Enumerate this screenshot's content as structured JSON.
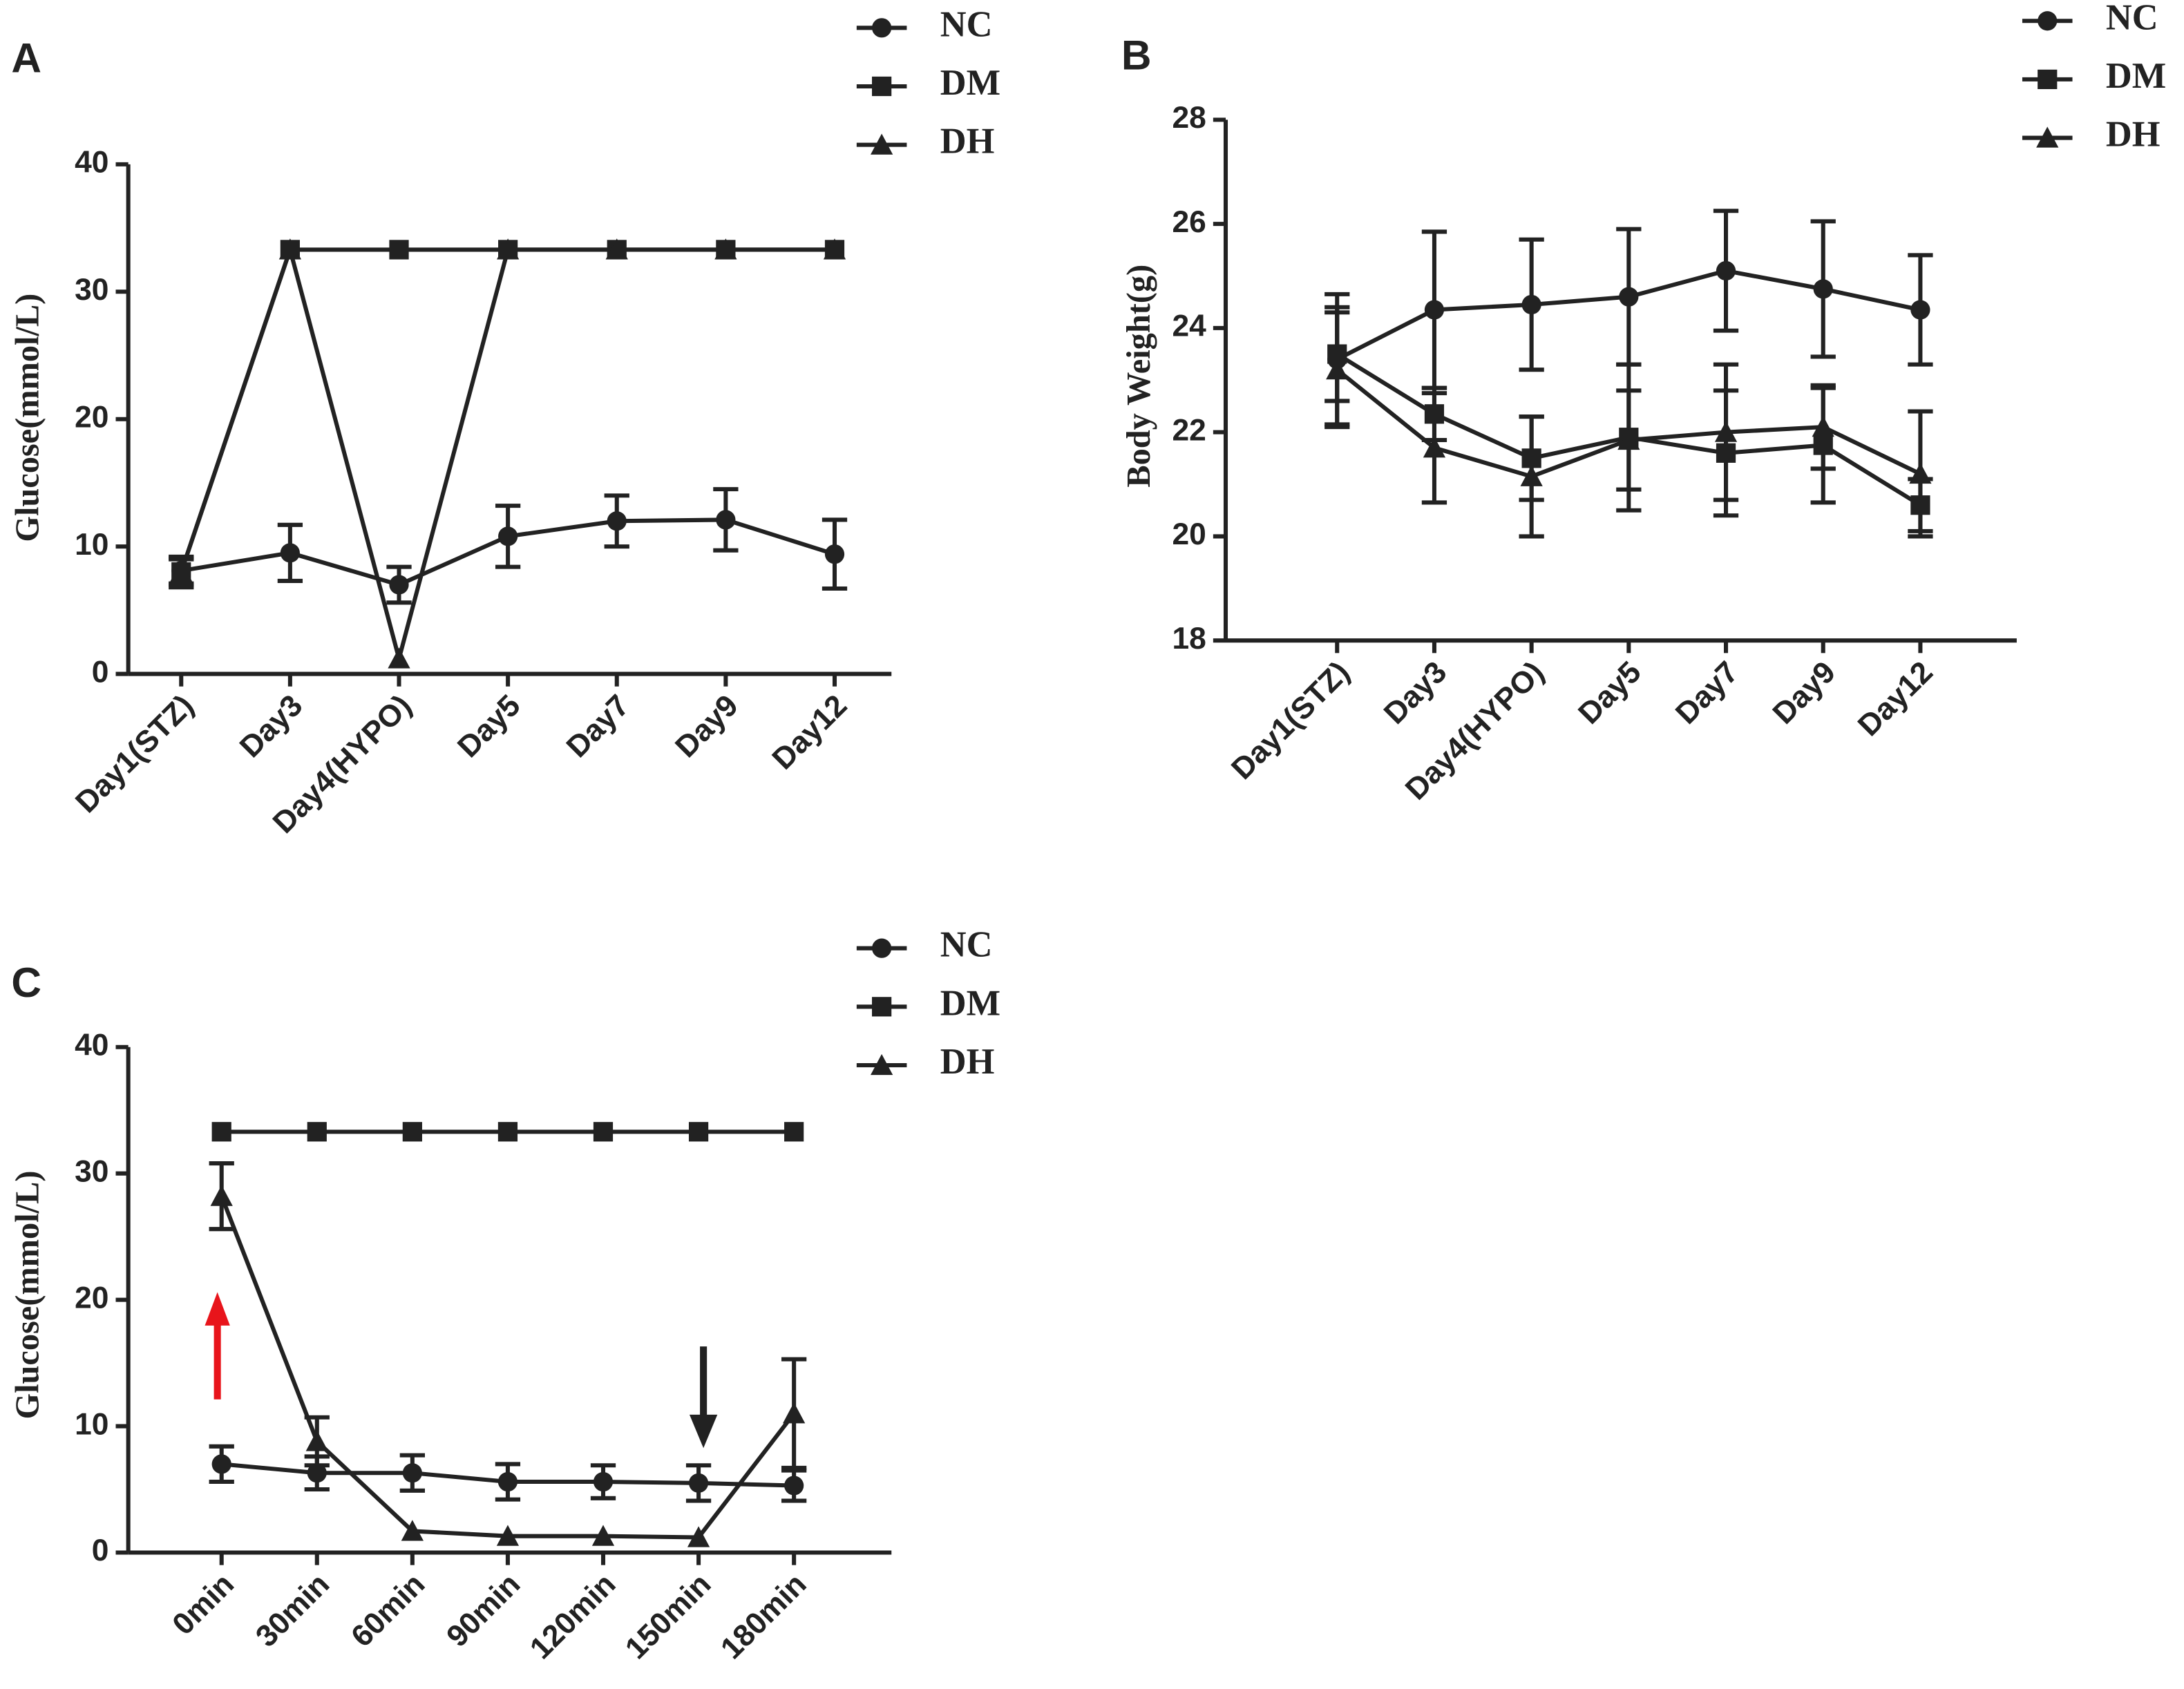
{
  "chart_data": [
    {
      "type": "line",
      "panel": "A",
      "ylabel": "Glucose(mmol/L)",
      "categories": [
        "Day1(STZ)",
        "Day3",
        "Day4(HYPO)",
        "Day5",
        "Day7",
        "Day9",
        "Day12"
      ],
      "ylim": [
        0,
        40
      ],
      "yticks": [
        0,
        10,
        20,
        30,
        40
      ],
      "series": [
        {
          "name": "NC",
          "marker": "circle",
          "color": "#222",
          "values": [
            8.1,
            9.5,
            7.0,
            10.8,
            12.0,
            12.1,
            9.4
          ],
          "errors": [
            1.0,
            2.2,
            1.4,
            2.4,
            2.0,
            2.4,
            2.7
          ]
        },
        {
          "name": "DM",
          "marker": "square",
          "color": "#222",
          "values": [
            8.0,
            33.3,
            33.3,
            33.3,
            33.3,
            33.3,
            33.3
          ],
          "errors": [
            1.2,
            null,
            null,
            null,
            null,
            null,
            null
          ]
        },
        {
          "name": "DH",
          "marker": "triangle",
          "color": "#222",
          "values": [
            8.0,
            33.3,
            1.2,
            33.3,
            33.3,
            33.3,
            33.3
          ],
          "errors": [
            1.0,
            null,
            null,
            null,
            null,
            null,
            null
          ]
        }
      ]
    },
    {
      "type": "line",
      "panel": "B",
      "ylabel": "Body Weight(g)",
      "categories": [
        "Day1(STZ)",
        "Day3",
        "Day4(HYPO)",
        "Day5",
        "Day7",
        "Day9",
        "Day12"
      ],
      "ylim": [
        18,
        28
      ],
      "yticks": [
        18,
        20,
        22,
        24,
        26,
        28
      ],
      "series": [
        {
          "name": "NC",
          "marker": "circle",
          "color": "#222",
          "values": [
            23.4,
            24.35,
            24.45,
            24.6,
            25.1,
            24.75,
            24.35
          ],
          "errors": [
            1.25,
            1.5,
            1.25,
            1.3,
            1.15,
            1.3,
            1.05
          ]
        },
        {
          "name": "DM",
          "marker": "square",
          "color": "#222",
          "values": [
            23.5,
            22.35,
            21.5,
            21.9,
            21.6,
            21.75,
            20.6
          ],
          "errors": [
            0.9,
            0.5,
            0.8,
            1.4,
            1.2,
            1.1,
            0.5
          ]
        },
        {
          "name": "DH",
          "marker": "triangle",
          "color": "#222",
          "values": [
            23.2,
            21.7,
            21.15,
            21.85,
            22.0,
            22.1,
            21.2
          ],
          "errors": [
            1.1,
            1.05,
            1.15,
            0.95,
            1.3,
            0.8,
            1.2
          ]
        }
      ]
    },
    {
      "type": "line",
      "panel": "C",
      "ylabel": "Glucose(mmol/L)",
      "categories": [
        "0min",
        "30min",
        "60min",
        "90min",
        "120min",
        "150min",
        "180min"
      ],
      "ylim": [
        0,
        40
      ],
      "yticks": [
        0,
        10,
        20,
        30,
        40
      ],
      "series": [
        {
          "name": "NC",
          "marker": "circle",
          "color": "#222",
          "values": [
            7.0,
            6.3,
            6.3,
            5.6,
            5.6,
            5.5,
            5.3
          ],
          "errors": [
            1.4,
            1.3,
            1.4,
            1.4,
            1.3,
            1.4,
            1.2
          ]
        },
        {
          "name": "DM",
          "marker": "square",
          "color": "#222",
          "values": [
            33.3,
            33.3,
            33.3,
            33.3,
            33.3,
            33.3,
            33.3
          ],
          "errors": [
            null,
            null,
            null,
            null,
            null,
            null,
            null
          ]
        },
        {
          "name": "DH",
          "marker": "triangle",
          "color": "#222",
          "values": [
            28.2,
            8.8,
            1.7,
            1.3,
            1.3,
            1.2,
            11.0
          ],
          "errors": [
            2.6,
            1.9,
            null,
            null,
            null,
            null,
            4.3
          ]
        }
      ]
    }
  ]
}
